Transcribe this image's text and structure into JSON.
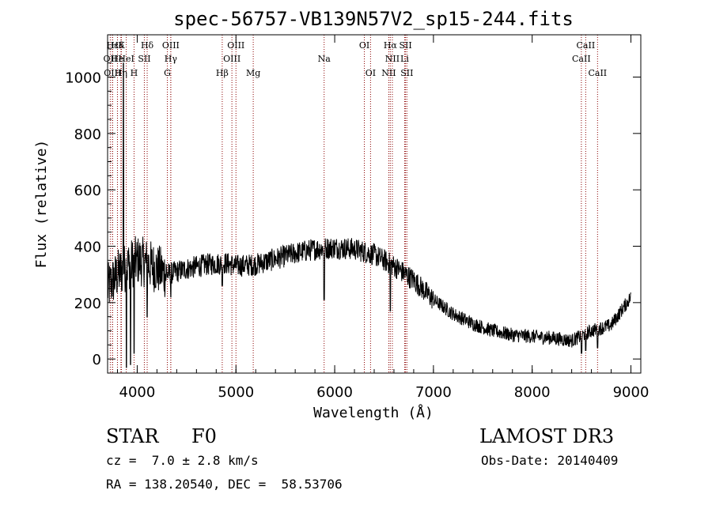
{
  "chart_data": {
    "type": "line",
    "title": "spec-56757-VB139N57V2_sp15-244.fits",
    "xlabel": "Wavelength (Å)",
    "ylabel": "Flux (relative)",
    "xlim": [
      3700,
      9100
    ],
    "ylim": [
      -50,
      1150
    ],
    "xticks": [
      4000,
      5000,
      6000,
      7000,
      8000,
      9000
    ],
    "yticks": [
      0,
      200,
      400,
      600,
      800,
      1000
    ],
    "grid": false,
    "line_color": "#000000",
    "marker_color": "#8b0000",
    "continuum": [
      {
        "x": 3700,
        "y": 250
      },
      {
        "x": 3800,
        "y": 300
      },
      {
        "x": 3900,
        "y": 330
      },
      {
        "x": 4000,
        "y": 350
      },
      {
        "x": 4100,
        "y": 340
      },
      {
        "x": 4200,
        "y": 320
      },
      {
        "x": 4300,
        "y": 300
      },
      {
        "x": 4500,
        "y": 320
      },
      {
        "x": 4700,
        "y": 335
      },
      {
        "x": 4900,
        "y": 340
      },
      {
        "x": 5000,
        "y": 330
      },
      {
        "x": 5200,
        "y": 335
      },
      {
        "x": 5400,
        "y": 355
      },
      {
        "x": 5600,
        "y": 375
      },
      {
        "x": 5800,
        "y": 390
      },
      {
        "x": 6000,
        "y": 395
      },
      {
        "x": 6200,
        "y": 390
      },
      {
        "x": 6400,
        "y": 370
      },
      {
        "x": 6600,
        "y": 330
      },
      {
        "x": 6800,
        "y": 280
      },
      {
        "x": 7000,
        "y": 210
      },
      {
        "x": 7200,
        "y": 160
      },
      {
        "x": 7400,
        "y": 125
      },
      {
        "x": 7600,
        "y": 100
      },
      {
        "x": 7800,
        "y": 85
      },
      {
        "x": 8000,
        "y": 80
      },
      {
        "x": 8200,
        "y": 75
      },
      {
        "x": 8400,
        "y": 65
      },
      {
        "x": 8600,
        "y": 100
      },
      {
        "x": 8800,
        "y": 120
      },
      {
        "x": 9000,
        "y": 220
      }
    ],
    "features": [
      {
        "x": 3860,
        "y": 1050
      },
      {
        "x": 3890,
        "y": -30
      },
      {
        "x": 3933,
        "y": -20
      },
      {
        "x": 3968,
        "y": 20
      },
      {
        "x": 4101,
        "y": 150
      },
      {
        "x": 4340,
        "y": 220
      },
      {
        "x": 4861,
        "y": 260
      },
      {
        "x": 5175,
        "y": 300
      },
      {
        "x": 5893,
        "y": 210
      },
      {
        "x": 6563,
        "y": 170
      },
      {
        "x": 8500,
        "y": 20
      },
      {
        "x": 8542,
        "y": 30
      },
      {
        "x": 8662,
        "y": 40
      }
    ],
    "lines": [
      {
        "label": "Hε",
        "x": 3750,
        "row": 0
      },
      {
        "label": "Hδ",
        "x": 3800,
        "row": 0
      },
      {
        "label": "K",
        "x": 3840,
        "row": 0
      },
      {
        "label": "Hδ",
        "x": 4101,
        "row": 0
      },
      {
        "label": "OIII",
        "x": 4340,
        "row": 0
      },
      {
        "label": "OIII",
        "x": 5000,
        "row": 0
      },
      {
        "label": "OI",
        "x": 6300,
        "row": 0
      },
      {
        "label": "Hα",
        "x": 6563,
        "row": 0
      },
      {
        "label": "SII",
        "x": 6717,
        "row": 0
      },
      {
        "label": "CaII",
        "x": 8542,
        "row": 0
      },
      {
        "label": "OII",
        "x": 3727,
        "row": 1
      },
      {
        "label": "He",
        "x": 3800,
        "row": 1
      },
      {
        "label": "HeI",
        "x": 3889,
        "row": 1
      },
      {
        "label": "SII",
        "x": 4072,
        "row": 1
      },
      {
        "label": "Hγ",
        "x": 4340,
        "row": 1
      },
      {
        "label": "OIII",
        "x": 4959,
        "row": 1
      },
      {
        "label": "Na",
        "x": 5893,
        "row": 1
      },
      {
        "label": "NII",
        "x": 6584,
        "row": 1
      },
      {
        "label": "Li",
        "x": 6708,
        "row": 1
      },
      {
        "label": "CaII",
        "x": 8498,
        "row": 1
      },
      {
        "label": "OIII",
        "x": 3750,
        "row": 2
      },
      {
        "label": "Hη",
        "x": 3835,
        "row": 2
      },
      {
        "label": "H",
        "x": 3968,
        "row": 2
      },
      {
        "label": "G",
        "x": 4305,
        "row": 2
      },
      {
        "label": "Hβ",
        "x": 4861,
        "row": 2
      },
      {
        "label": "Mg",
        "x": 5175,
        "row": 2
      },
      {
        "label": "OI",
        "x": 6363,
        "row": 2
      },
      {
        "label": "NII",
        "x": 6548,
        "row": 2
      },
      {
        "label": "SII",
        "x": 6731,
        "row": 2
      },
      {
        "label": "CaII",
        "x": 8662,
        "row": 2
      }
    ]
  },
  "info": {
    "object_class": "STAR",
    "subclass": "F0",
    "survey": "LAMOST DR3",
    "redshift": "cz =  7.0 ± 2.8 km/s",
    "obs_date": "Obs-Date: 20140409",
    "coords": "RA = 138.20540, DEC =  58.53706"
  }
}
